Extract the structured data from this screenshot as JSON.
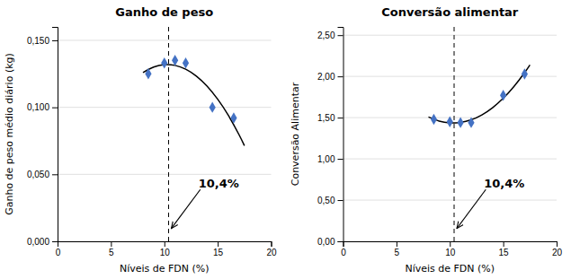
{
  "chart_data": [
    {
      "type": "scatter",
      "title": "Ganho de peso",
      "xlabel": "Níveis de FDN (%)",
      "ylabel": "Ganho de peso médio diário (kg)",
      "xlim": [
        0,
        20
      ],
      "ylim": [
        0.0,
        0.16
      ],
      "xticks": [
        0,
        5,
        10,
        15,
        20
      ],
      "yticks": [
        {
          "value": 0.0,
          "label": "0,000"
        },
        {
          "value": 0.05,
          "label": "0,050"
        },
        {
          "value": 0.1,
          "label": "0,100"
        },
        {
          "value": 0.15,
          "label": "0,150"
        }
      ],
      "grid": true,
      "series": [
        {
          "type": "scatter",
          "color": "#4472C4",
          "marker": "diamond",
          "x": [
            8.5,
            10.0,
            11.0,
            12.0,
            14.5,
            16.5
          ],
          "values": [
            0.125,
            0.133,
            0.135,
            0.133,
            0.1,
            0.092
          ]
        },
        {
          "type": "line",
          "color": "#000000",
          "x": [
            8,
            9,
            10,
            11,
            12,
            13,
            14,
            15,
            16,
            17,
            17.5
          ],
          "values": [
            0.12594,
            0.13004,
            0.13182,
            0.13129,
            0.12844,
            0.12328,
            0.1158,
            0.10601,
            0.0939,
            0.07948,
            0.0714
          ]
        }
      ],
      "annotations": [
        {
          "text": "10,4%",
          "x": 10.4,
          "line_style": "dashed"
        }
      ]
    },
    {
      "type": "scatter",
      "title": "Conversão alimentar",
      "xlabel": "Níveis de FDN (%)",
      "ylabel": "Conversão Alimentar",
      "xlim": [
        0,
        20
      ],
      "ylim": [
        0.0,
        2.6
      ],
      "xticks": [
        0,
        5,
        10,
        15,
        20
      ],
      "yticks": [
        {
          "value": 0.0,
          "label": "0,00"
        },
        {
          "value": 0.5,
          "label": "0,50"
        },
        {
          "value": 1.0,
          "label": "1,00"
        },
        {
          "value": 1.5,
          "label": "1,50"
        },
        {
          "value": 2.0,
          "label": "2,00"
        },
        {
          "value": 2.5,
          "label": "2,50"
        }
      ],
      "grid": true,
      "series": [
        {
          "type": "scatter",
          "color": "#4472C4",
          "marker": "diamond",
          "x": [
            8.5,
            10.0,
            11.0,
            12.0,
            15.0,
            17.0
          ],
          "values": [
            1.48,
            1.45,
            1.44,
            1.44,
            1.77,
            2.03
          ]
        },
        {
          "type": "line",
          "color": "#000000",
          "x": [
            8,
            9,
            10,
            11,
            12,
            13,
            14,
            15,
            16,
            17,
            17.5
          ],
          "values": [
            1.5074,
            1.458,
            1.4359,
            1.4411,
            1.4736,
            1.5334,
            1.6204,
            1.7348,
            1.8764,
            2.0452,
            2.1399
          ]
        }
      ],
      "annotations": [
        {
          "text": "10,4%",
          "x": 10.4,
          "line_style": "dashed"
        }
      ]
    }
  ]
}
